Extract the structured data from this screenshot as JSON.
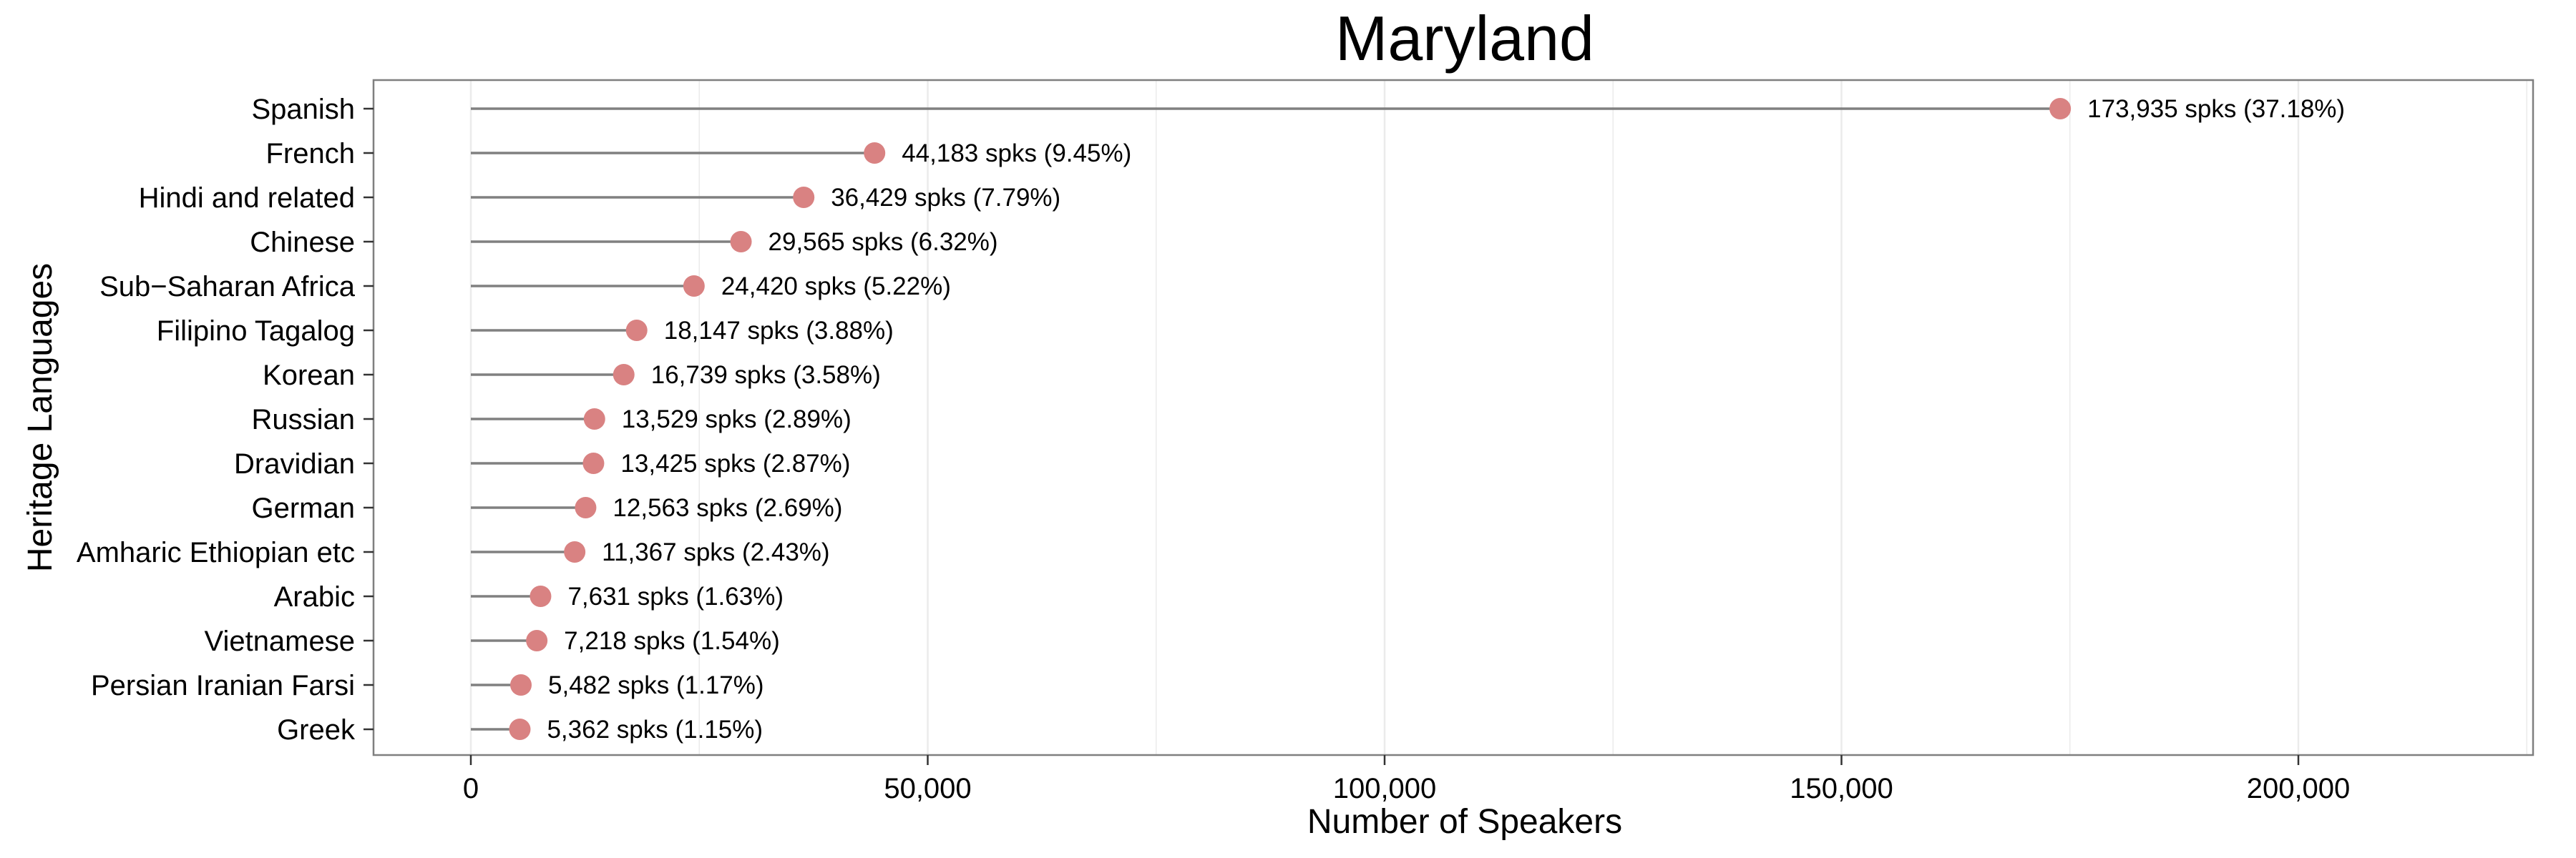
{
  "chart_data": {
    "type": "lollipop",
    "title": "Maryland",
    "xlabel": "Number of Speakers",
    "ylabel": "Heritage Languages",
    "xlim": [
      -16000,
      225000
    ],
    "x_ticks": [
      0,
      50000,
      100000,
      150000,
      200000
    ],
    "x_tick_labels": [
      "0",
      "50,000",
      "100,000",
      "150,000",
      "200,000"
    ],
    "grid": true,
    "categories": [
      "Spanish",
      "French",
      "Hindi and related",
      "Chinese",
      "Sub−Saharan Africa",
      "Filipino Tagalog",
      "Korean",
      "Russian",
      "Dravidian",
      "German",
      "Amharic Ethiopian etc",
      "Arabic",
      "Vietnamese",
      "Persian Iranian Farsi",
      "Greek"
    ],
    "values": [
      173935,
      44183,
      36429,
      29565,
      24420,
      18147,
      16739,
      13529,
      13425,
      12563,
      11367,
      7631,
      7218,
      5482,
      5362
    ],
    "labels": [
      "173,935 spks (37.18%)",
      "44,183 spks (9.45%)",
      "36,429 spks (7.79%)",
      "29,565 spks (6.32%)",
      "24,420 spks (5.22%)",
      "18,147 spks (3.88%)",
      "16,739 spks (3.58%)",
      "13,529 spks (2.89%)",
      "13,425 spks (2.87%)",
      "12,563 spks (2.69%)",
      "11,367 spks (2.43%)",
      "7,631 spks (1.63%)",
      "7,218 spks (1.54%)",
      "5,482 spks (1.17%)",
      "5,362 spks (1.15%)"
    ],
    "colors": {
      "point": "#d98282",
      "stem": "#808080",
      "grid": "#ebebeb",
      "border": "#7f7f7f"
    }
  }
}
